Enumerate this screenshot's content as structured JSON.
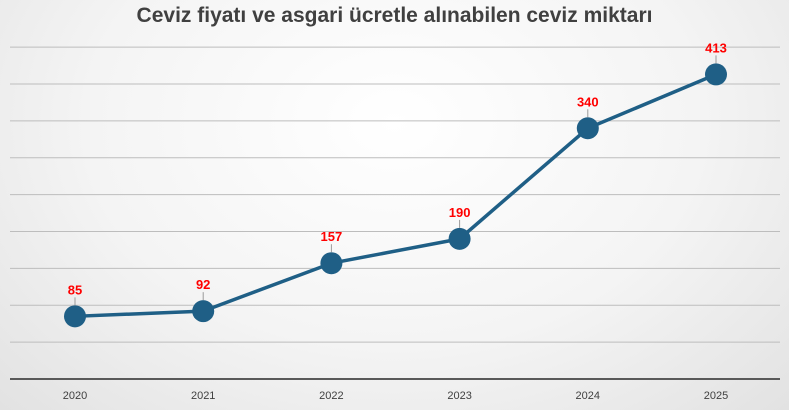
{
  "chart_data": {
    "type": "line",
    "title": "Ceviz fiyatı ve asgari ücretle alınabilen ceviz miktarı",
    "categories": [
      "2020",
      "2021",
      "2022",
      "2023",
      "2024",
      "2025"
    ],
    "series": [
      {
        "values": [
          85,
          92,
          157,
          190,
          340,
          413
        ]
      }
    ],
    "data_labels": [
      "85",
      "92",
      "157",
      "190",
      "340",
      "413"
    ],
    "ylim": [
      0,
      450
    ],
    "y_axis_labels_visible": false,
    "grid": true,
    "legend": "none",
    "colors": {
      "line": "#1f5f86",
      "marker": "#1f5f86",
      "label": "#ff0000",
      "grid": "#bdbdbd",
      "axis": "#595959"
    }
  }
}
